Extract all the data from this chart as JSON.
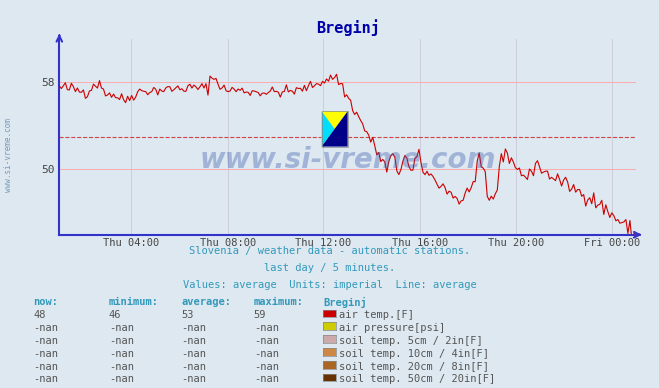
{
  "title": "Breginj",
  "bg_color": "#dde8f0",
  "plot_bg_color": "#dde8f0",
  "line_color": "#cc0000",
  "line_width": 0.8,
  "axis_color": "#3333cc",
  "grid_color_h": "#ffaaaa",
  "grid_color_v": "#ccccdd",
  "avg_line_color": "#cc0000",
  "x_tick_labels": [
    "Thu 04:00",
    "Thu 08:00",
    "Thu 12:00",
    "Thu 16:00",
    "Thu 20:00",
    "Fri 00:00"
  ],
  "x_tick_positions": [
    0.125,
    0.292,
    0.458,
    0.625,
    0.792,
    0.958
  ],
  "yticks": [
    50,
    58
  ],
  "ylim": [
    44,
    62
  ],
  "subtitle1": "Slovenia / weather data - automatic stations.",
  "subtitle2": "last day / 5 minutes.",
  "subtitle3": "Values: average  Units: imperial  Line: average",
  "watermark": "www.si-vreme.com",
  "legend_headers": [
    "now:",
    "minimum:",
    "average:",
    "maximum:",
    "Breginj"
  ],
  "legend_rows": [
    {
      "now": "48",
      "min": "46",
      "avg": "53",
      "max": "59",
      "color": "#cc0000",
      "label": "air temp.[F]"
    },
    {
      "now": "-nan",
      "min": "-nan",
      "avg": "-nan",
      "max": "-nan",
      "color": "#cccc00",
      "label": "air pressure[psi]"
    },
    {
      "now": "-nan",
      "min": "-nan",
      "avg": "-nan",
      "max": "-nan",
      "color": "#ccaaaa",
      "label": "soil temp. 5cm / 2in[F]"
    },
    {
      "now": "-nan",
      "min": "-nan",
      "avg": "-nan",
      "max": "-nan",
      "color": "#cc8844",
      "label": "soil temp. 10cm / 4in[F]"
    },
    {
      "now": "-nan",
      "min": "-nan",
      "avg": "-nan",
      "max": "-nan",
      "color": "#aa6622",
      "label": "soil temp. 20cm / 8in[F]"
    },
    {
      "now": "-nan",
      "min": "-nan",
      "avg": "-nan",
      "max": "-nan",
      "color": "#663300",
      "label": "soil temp. 50cm / 20in[F]"
    }
  ],
  "avg_value": 53,
  "num_points": 288
}
